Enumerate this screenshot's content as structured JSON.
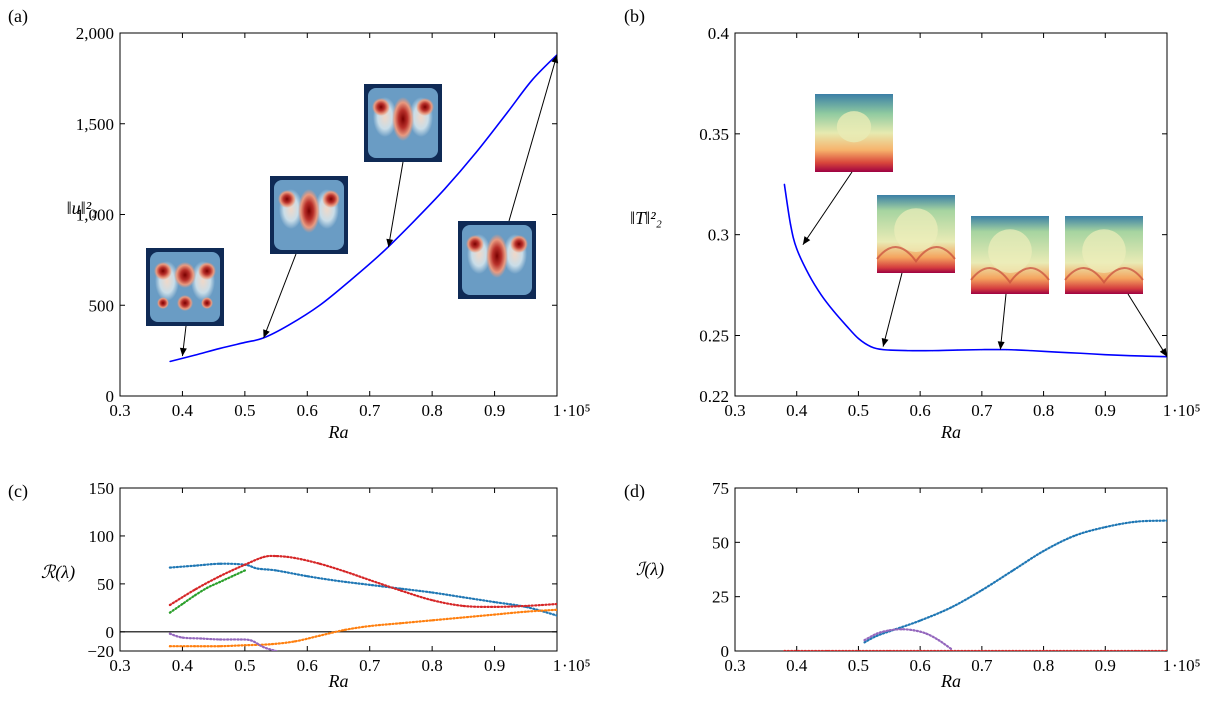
{
  "chart_data": [
    {
      "panel": "(a)",
      "type": "line",
      "xlabel": "Ra",
      "ylabel": "‖u‖²₂",
      "x_multiplier": "·10⁵",
      "xlim": [
        0.3,
        1.0
      ],
      "ylim": [
        0,
        2000
      ],
      "xticks": [
        "0.3",
        "0.4",
        "0.5",
        "0.6",
        "0.7",
        "0.8",
        "0.9",
        "1"
      ],
      "yticks": [
        "0",
        "500",
        "1,000",
        "1,500",
        "2,000"
      ],
      "ytick_values": [
        0,
        500,
        1000,
        1500,
        2000
      ],
      "series": [
        {
          "color": "#0000ff",
          "x": [
            0.38,
            0.42,
            0.46,
            0.5,
            0.53,
            0.57,
            0.62,
            0.67,
            0.72,
            0.77,
            0.82,
            0.87,
            0.92,
            0.96,
            1.0
          ],
          "y": [
            190,
            225,
            262,
            295,
            320,
            390,
            500,
            640,
            790,
            960,
            1140,
            1340,
            1560,
            1740,
            1880
          ]
        }
      ],
      "insets": [
        {
          "kind": "velocity",
          "x": 0.4,
          "y": 220
        },
        {
          "kind": "velocity",
          "x": 0.53,
          "y": 320
        },
        {
          "kind": "velocity",
          "x": 0.73,
          "y": 820
        },
        {
          "kind": "velocity",
          "x": 1.0,
          "y": 1880
        }
      ]
    },
    {
      "panel": "(b)",
      "type": "line",
      "xlabel": "Ra",
      "ylabel": "‖T‖²₂",
      "x_multiplier": "·10⁵",
      "xlim": [
        0.3,
        1.0
      ],
      "ylim": [
        0.22,
        0.4
      ],
      "xticks": [
        "0.3",
        "0.4",
        "0.5",
        "0.6",
        "0.7",
        "0.8",
        "0.9",
        "1"
      ],
      "yticks": [
        "0.22",
        "0.25",
        "0.3",
        "0.35",
        "0.4"
      ],
      "ytick_values": [
        0.22,
        0.25,
        0.3,
        0.35,
        0.4
      ],
      "series": [
        {
          "color": "#0000ff",
          "x": [
            0.38,
            0.39,
            0.4,
            0.42,
            0.44,
            0.46,
            0.48,
            0.5,
            0.52,
            0.54,
            0.58,
            0.62,
            0.66,
            0.7,
            0.74,
            0.78,
            0.82,
            0.86,
            0.9,
            0.94,
            1.0
          ],
          "y": [
            0.325,
            0.305,
            0.293,
            0.28,
            0.27,
            0.262,
            0.255,
            0.2485,
            0.2445,
            0.243,
            0.2425,
            0.2425,
            0.2428,
            0.243,
            0.243,
            0.2425,
            0.2418,
            0.2412,
            0.2405,
            0.24,
            0.2395
          ]
        }
      ],
      "insets": [
        {
          "kind": "temperature",
          "x": 0.41,
          "y": 0.295
        },
        {
          "kind": "temperature",
          "x": 0.54,
          "y": 0.2445
        },
        {
          "kind": "temperature",
          "x": 0.73,
          "y": 0.243
        },
        {
          "kind": "temperature",
          "x": 1.0,
          "y": 0.2395
        }
      ]
    },
    {
      "panel": "(c)",
      "type": "scatter",
      "xlabel": "Ra",
      "ylabel": "ℛ(λ)",
      "x_multiplier": "·10⁵",
      "xlim": [
        0.3,
        1.0
      ],
      "ylim": [
        -20,
        150
      ],
      "xticks": [
        "0.3",
        "0.4",
        "0.5",
        "0.6",
        "0.7",
        "0.8",
        "0.9",
        "1"
      ],
      "yticks": [
        "−20",
        "0",
        "50",
        "100",
        "150"
      ],
      "ytick_values": [
        -20,
        0,
        50,
        100,
        150
      ],
      "zero_line": true,
      "series": [
        {
          "color": "#1f77b4",
          "x": [
            0.38,
            0.42,
            0.46,
            0.5,
            0.52,
            0.55,
            0.6,
            0.65,
            0.7,
            0.75,
            0.8,
            0.85,
            0.9,
            0.95,
            1.0
          ],
          "y": [
            67,
            69,
            71,
            70,
            66,
            64,
            58,
            53,
            49,
            45,
            41,
            36,
            31,
            26,
            17
          ]
        },
        {
          "color": "#d62728",
          "x": [
            0.38,
            0.42,
            0.46,
            0.5,
            0.53,
            0.55,
            0.58,
            0.62,
            0.66,
            0.7,
            0.75,
            0.8,
            0.85,
            0.9,
            0.95,
            1.0
          ],
          "y": [
            28,
            44,
            58,
            70,
            78,
            79,
            77,
            71,
            63,
            54,
            43,
            33,
            27,
            26,
            27,
            29
          ]
        },
        {
          "color": "#2ca02c",
          "x": [
            0.38,
            0.4,
            0.42,
            0.44,
            0.46,
            0.48,
            0.5
          ],
          "y": [
            20,
            29,
            38,
            46,
            52,
            58,
            64
          ]
        },
        {
          "color": "#ff7f0e",
          "x": [
            0.38,
            0.42,
            0.46,
            0.5,
            0.54,
            0.58,
            0.62,
            0.66,
            0.7,
            0.75,
            0.8,
            0.85,
            0.9,
            0.95,
            1.0
          ],
          "y": [
            -15,
            -15,
            -15,
            -14,
            -13,
            -10,
            -4,
            2,
            6,
            9,
            12,
            15,
            18,
            21,
            23
          ]
        },
        {
          "color": "#9467bd",
          "x": [
            0.38,
            0.4,
            0.43,
            0.46,
            0.49,
            0.51,
            0.53,
            0.55
          ],
          "y": [
            -2,
            -6,
            -7,
            -8,
            -8,
            -9,
            -16,
            -20
          ]
        }
      ]
    },
    {
      "panel": "(d)",
      "type": "scatter",
      "xlabel": "Ra",
      "ylabel": "ℐ(λ)",
      "x_multiplier": "·10⁵",
      "xlim": [
        0.3,
        1.0
      ],
      "ylim": [
        0,
        75
      ],
      "xticks": [
        "0.3",
        "0.4",
        "0.5",
        "0.6",
        "0.7",
        "0.8",
        "0.9",
        "1"
      ],
      "yticks": [
        "0",
        "25",
        "50",
        "75"
      ],
      "ytick_values": [
        0,
        25,
        50,
        75
      ],
      "series": [
        {
          "color": "#1f77b4",
          "x": [
            0.51,
            0.53,
            0.56,
            0.6,
            0.65,
            0.7,
            0.75,
            0.8,
            0.85,
            0.9,
            0.95,
            1.0
          ],
          "y": [
            4,
            7,
            10,
            14,
            20,
            28,
            37,
            46,
            53,
            57,
            59.5,
            60
          ]
        },
        {
          "color": "#9467bd",
          "x": [
            0.51,
            0.53,
            0.55,
            0.57,
            0.59,
            0.61,
            0.63,
            0.65
          ],
          "y": [
            5,
            8,
            9.5,
            10,
            9.5,
            8,
            5,
            1
          ]
        },
        {
          "color": "#d62728",
          "x": [
            0.38,
            0.45,
            0.55,
            0.65,
            0.75,
            0.85,
            0.95,
            1.0
          ],
          "y": [
            0,
            0,
            0,
            0,
            0,
            0,
            0,
            0
          ]
        }
      ]
    }
  ],
  "panel_labels": [
    "(a)",
    "(b)",
    "(c)",
    "(d)"
  ],
  "colors": {
    "line": "#0000ff",
    "axes": "#000000"
  }
}
